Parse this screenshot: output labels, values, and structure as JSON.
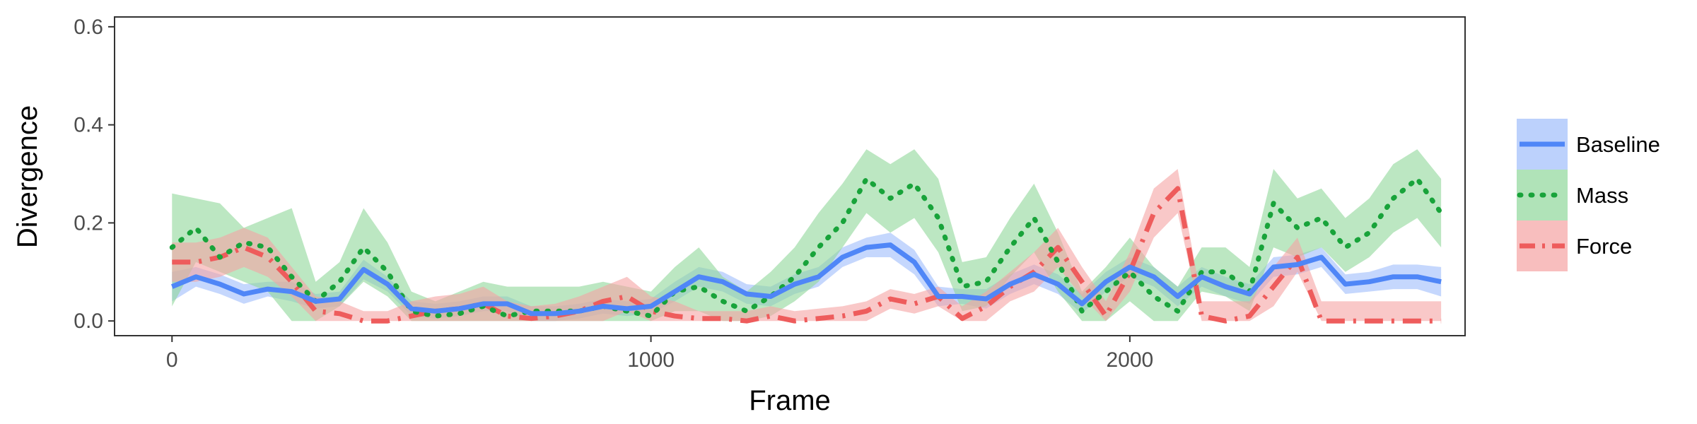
{
  "chart_data": {
    "type": "line",
    "xlabel": "Frame",
    "ylabel": "Divergence",
    "xlim": [
      -120,
      2700
    ],
    "ylim": [
      -0.03,
      0.62
    ],
    "x_ticks": [
      0,
      1000,
      2000
    ],
    "x_tick_labels": [
      "0",
      "1000",
      "2000"
    ],
    "y_ticks": [
      0.0,
      0.2,
      0.4,
      0.6
    ],
    "y_tick_labels": [
      "0.0",
      "0.2",
      "0.4",
      "0.6"
    ],
    "grid": false,
    "legend": {
      "position": "right"
    },
    "x": [
      0,
      50,
      100,
      150,
      200,
      250,
      300,
      350,
      400,
      450,
      500,
      550,
      600,
      650,
      700,
      750,
      800,
      850,
      900,
      950,
      1000,
      1050,
      1100,
      1150,
      1200,
      1250,
      1300,
      1350,
      1400,
      1450,
      1500,
      1550,
      1600,
      1650,
      1700,
      1750,
      1800,
      1850,
      1900,
      1950,
      2000,
      2050,
      2100,
      2150,
      2200,
      2250,
      2300,
      2350,
      2400,
      2450,
      2500,
      2550,
      2600,
      2650
    ],
    "series": [
      {
        "name": "Baseline",
        "color": "#4f86f7",
        "band_color": "#9fbdfb",
        "line_style": "solid",
        "values": [
          0.07,
          0.09,
          0.075,
          0.055,
          0.065,
          0.06,
          0.04,
          0.045,
          0.105,
          0.075,
          0.025,
          0.02,
          0.025,
          0.035,
          0.035,
          0.015,
          0.015,
          0.02,
          0.03,
          0.025,
          0.03,
          0.06,
          0.09,
          0.08,
          0.055,
          0.05,
          0.075,
          0.09,
          0.13,
          0.15,
          0.155,
          0.12,
          0.05,
          0.05,
          0.045,
          0.075,
          0.095,
          0.075,
          0.035,
          0.08,
          0.11,
          0.09,
          0.05,
          0.09,
          0.07,
          0.055,
          0.11,
          0.115,
          0.13,
          0.075,
          0.08,
          0.09,
          0.09,
          0.08
        ],
        "lower": [
          0.04,
          0.07,
          0.055,
          0.035,
          0.05,
          0.04,
          0.025,
          0.03,
          0.085,
          0.06,
          0.01,
          0.005,
          0.01,
          0.02,
          0.02,
          0.0,
          0.0,
          0.005,
          0.015,
          0.01,
          0.015,
          0.04,
          0.07,
          0.06,
          0.035,
          0.03,
          0.055,
          0.07,
          0.11,
          0.13,
          0.13,
          0.095,
          0.03,
          0.035,
          0.025,
          0.055,
          0.075,
          0.055,
          0.015,
          0.06,
          0.09,
          0.07,
          0.03,
          0.07,
          0.05,
          0.035,
          0.09,
          0.095,
          0.11,
          0.055,
          0.06,
          0.065,
          0.065,
          0.05
        ],
        "upper": [
          0.1,
          0.11,
          0.095,
          0.075,
          0.08,
          0.08,
          0.055,
          0.06,
          0.125,
          0.09,
          0.04,
          0.035,
          0.04,
          0.05,
          0.05,
          0.03,
          0.03,
          0.035,
          0.045,
          0.04,
          0.045,
          0.08,
          0.11,
          0.1,
          0.075,
          0.07,
          0.095,
          0.11,
          0.15,
          0.17,
          0.18,
          0.145,
          0.07,
          0.065,
          0.065,
          0.095,
          0.115,
          0.095,
          0.055,
          0.1,
          0.13,
          0.11,
          0.07,
          0.11,
          0.09,
          0.075,
          0.13,
          0.135,
          0.15,
          0.095,
          0.1,
          0.115,
          0.115,
          0.11
        ]
      },
      {
        "name": "Mass",
        "color": "#18a33a",
        "band_color": "#8fd79a",
        "line_style": "dotted",
        "values": [
          0.15,
          0.19,
          0.13,
          0.16,
          0.15,
          0.09,
          0.04,
          0.08,
          0.15,
          0.1,
          0.02,
          0.01,
          0.015,
          0.03,
          0.01,
          0.02,
          0.02,
          0.02,
          0.03,
          0.02,
          0.01,
          0.06,
          0.07,
          0.04,
          0.02,
          0.05,
          0.09,
          0.15,
          0.2,
          0.29,
          0.25,
          0.28,
          0.21,
          0.07,
          0.08,
          0.15,
          0.21,
          0.12,
          0.02,
          0.06,
          0.1,
          0.05,
          0.02,
          0.1,
          0.1,
          0.06,
          0.24,
          0.19,
          0.21,
          0.15,
          0.18,
          0.25,
          0.29,
          0.22
        ],
        "lower": [
          0.03,
          0.12,
          0.1,
          0.08,
          0.06,
          0.0,
          0.0,
          0.03,
          0.08,
          0.05,
          0.0,
          0.0,
          0.0,
          0.0,
          0.0,
          0.0,
          0.0,
          0.0,
          0.0,
          0.0,
          0.0,
          0.02,
          0.02,
          0.0,
          0.0,
          0.01,
          0.04,
          0.08,
          0.15,
          0.22,
          0.18,
          0.21,
          0.14,
          0.02,
          0.03,
          0.09,
          0.14,
          0.06,
          0.0,
          0.0,
          0.04,
          0.0,
          0.0,
          0.06,
          0.05,
          0.02,
          0.15,
          0.13,
          0.15,
          0.1,
          0.13,
          0.18,
          0.21,
          0.15
        ],
        "upper": [
          0.26,
          0.25,
          0.24,
          0.19,
          0.21,
          0.23,
          0.08,
          0.12,
          0.23,
          0.16,
          0.06,
          0.04,
          0.06,
          0.08,
          0.07,
          0.07,
          0.07,
          0.07,
          0.08,
          0.07,
          0.06,
          0.11,
          0.15,
          0.09,
          0.06,
          0.1,
          0.15,
          0.22,
          0.28,
          0.35,
          0.32,
          0.35,
          0.29,
          0.12,
          0.13,
          0.21,
          0.28,
          0.18,
          0.06,
          0.11,
          0.17,
          0.11,
          0.07,
          0.15,
          0.15,
          0.11,
          0.31,
          0.25,
          0.27,
          0.21,
          0.25,
          0.32,
          0.35,
          0.29
        ]
      },
      {
        "name": "Force",
        "color": "#ee5c5c",
        "band_color": "#f5a3a3",
        "line_style": "dashdot",
        "values": [
          0.12,
          0.12,
          0.13,
          0.15,
          0.13,
          0.08,
          0.02,
          0.015,
          0.0,
          0.0,
          0.01,
          0.02,
          0.025,
          0.035,
          0.01,
          0.005,
          0.01,
          0.02,
          0.04,
          0.05,
          0.02,
          0.01,
          0.005,
          0.005,
          0.0,
          0.01,
          0.0,
          0.005,
          0.01,
          0.02,
          0.045,
          0.035,
          0.05,
          0.005,
          0.03,
          0.07,
          0.1,
          0.15,
          0.08,
          0.01,
          0.1,
          0.22,
          0.27,
          0.01,
          0.0,
          0.01,
          0.07,
          0.13,
          0.0,
          0.0,
          0.0,
          0.0,
          0.0,
          0.0
        ],
        "lower": [
          0.08,
          0.08,
          0.09,
          0.11,
          0.09,
          0.05,
          0.0,
          0.0,
          0.0,
          0.0,
          0.0,
          0.0,
          0.0,
          0.0,
          0.0,
          0.0,
          0.0,
          0.0,
          0.0,
          0.02,
          0.0,
          0.0,
          0.0,
          0.0,
          0.0,
          0.0,
          0.0,
          0.0,
          0.0,
          0.0,
          0.025,
          0.015,
          0.03,
          0.0,
          0.0,
          0.04,
          0.06,
          0.11,
          0.05,
          0.0,
          0.06,
          0.17,
          0.22,
          0.0,
          0.0,
          0.0,
          0.03,
          0.1,
          0.0,
          0.0,
          0.0,
          0.0,
          0.0,
          0.0
        ],
        "upper": [
          0.16,
          0.16,
          0.17,
          0.19,
          0.17,
          0.11,
          0.05,
          0.04,
          0.02,
          0.02,
          0.04,
          0.05,
          0.055,
          0.07,
          0.04,
          0.03,
          0.035,
          0.05,
          0.07,
          0.09,
          0.05,
          0.04,
          0.02,
          0.02,
          0.02,
          0.03,
          0.02,
          0.025,
          0.03,
          0.04,
          0.065,
          0.055,
          0.07,
          0.03,
          0.06,
          0.1,
          0.14,
          0.19,
          0.11,
          0.04,
          0.14,
          0.27,
          0.31,
          0.04,
          0.04,
          0.04,
          0.11,
          0.17,
          0.04,
          0.04,
          0.04,
          0.04,
          0.04,
          0.04
        ]
      }
    ]
  }
}
